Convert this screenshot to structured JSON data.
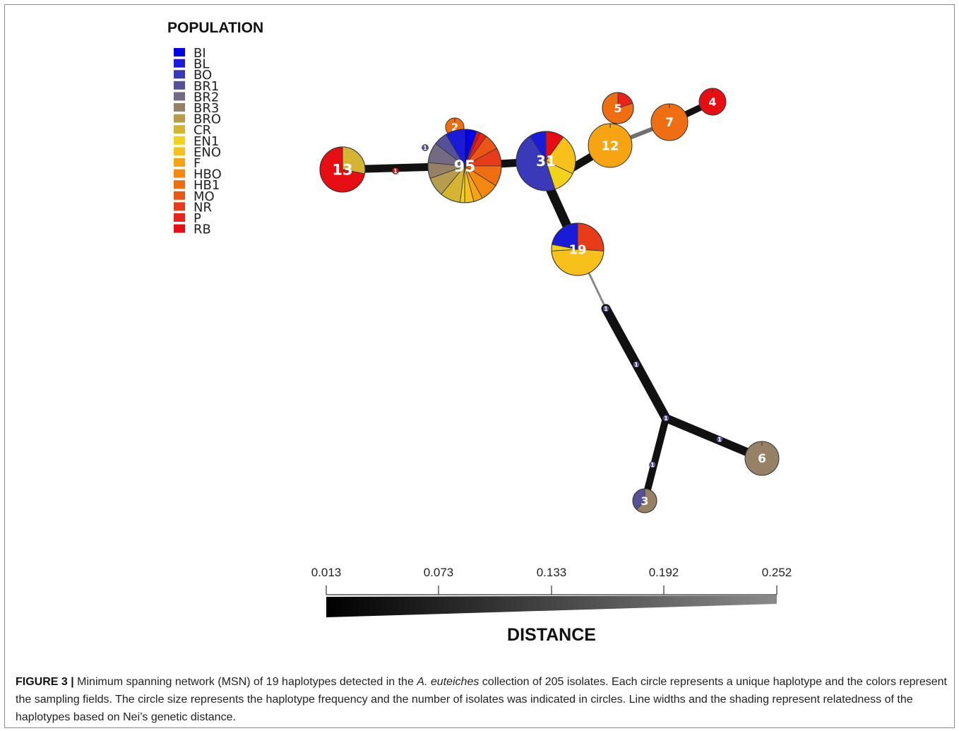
{
  "legend": {
    "title": "POPULATION",
    "items": [
      {
        "label": "BI",
        "color": "#0000e6"
      },
      {
        "label": "BL",
        "color": "#1a1ad9"
      },
      {
        "label": "BO",
        "color": "#3a3ab8"
      },
      {
        "label": "BR1",
        "color": "#55509a"
      },
      {
        "label": "BR2",
        "color": "#746a84"
      },
      {
        "label": "BR3",
        "color": "#968167"
      },
      {
        "label": "BRO",
        "color": "#b69c4e"
      },
      {
        "label": "CR",
        "color": "#d4b432"
      },
      {
        "label": "EN1",
        "color": "#f2d21a"
      },
      {
        "label": "ENO",
        "color": "#f7c01a"
      },
      {
        "label": "F",
        "color": "#f7a412"
      },
      {
        "label": "HBO",
        "color": "#f5880e"
      },
      {
        "label": "HB1",
        "color": "#f06e12"
      },
      {
        "label": "MO",
        "color": "#eb5516"
      },
      {
        "label": "NR",
        "color": "#e83b1a"
      },
      {
        "label": "P",
        "color": "#e8241a"
      },
      {
        "label": "RB",
        "color": "#e60e12"
      }
    ]
  },
  "network": {
    "nodes": [
      {
        "id": "n13",
        "label": "13",
        "count": 13,
        "slices": [
          [
            "CR",
            0.28
          ],
          [
            "RB",
            0.72
          ]
        ]
      },
      {
        "id": "n2",
        "label": "2",
        "count": 2,
        "slices": [
          [
            "HB1",
            1.0
          ]
        ]
      },
      {
        "id": "n95",
        "label": "95",
        "count": 95,
        "slices": [
          [
            "BI",
            0.055
          ],
          [
            "RB",
            0.015
          ],
          [
            "P",
            0.03
          ],
          [
            "MO",
            0.07
          ],
          [
            "NR",
            0.08
          ],
          [
            "HB1",
            0.09
          ],
          [
            "HBO",
            0.08
          ],
          [
            "F",
            0.04
          ],
          [
            "ENO",
            0.04
          ],
          [
            "EN1",
            0.02
          ],
          [
            "CR",
            0.09
          ],
          [
            "BRO",
            0.085
          ],
          [
            "BR3",
            0.07
          ],
          [
            "BR2",
            0.09
          ],
          [
            "BR1",
            0.06
          ],
          [
            "BL",
            0.085
          ]
        ]
      },
      {
        "id": "n31",
        "label": "31",
        "count": 31,
        "slices": [
          [
            "RB",
            0.1
          ],
          [
            "ENO",
            0.22
          ],
          [
            "EN1",
            0.13
          ],
          [
            "BO",
            0.46
          ],
          [
            "BL",
            0.09
          ]
        ]
      },
      {
        "id": "n5",
        "label": "5",
        "count": 5,
        "slices": [
          [
            "P",
            0.2
          ],
          [
            "HB1",
            0.8
          ]
        ]
      },
      {
        "id": "n12",
        "label": "12",
        "count": 12,
        "slices": [
          [
            "F",
            1.0
          ]
        ]
      },
      {
        "id": "n7",
        "label": "7",
        "count": 7,
        "slices": [
          [
            "HB1",
            1.0
          ]
        ]
      },
      {
        "id": "n4",
        "label": "4",
        "count": 4,
        "slices": [
          [
            "RB",
            1.0
          ]
        ]
      },
      {
        "id": "n19",
        "label": "19",
        "count": 19,
        "slices": [
          [
            "NR",
            0.26
          ],
          [
            "ENO",
            0.48
          ],
          [
            "EN1",
            0.04
          ],
          [
            "BL",
            0.22
          ]
        ]
      },
      {
        "id": "n6",
        "label": "6",
        "count": 6,
        "slices": [
          [
            "BR3",
            1.0
          ]
        ]
      },
      {
        "id": "n3",
        "label": "3",
        "count": 3,
        "slices": [
          [
            "BR3",
            0.62
          ],
          [
            "BR1",
            0.38
          ]
        ]
      }
    ],
    "edges": [
      {
        "from": "n13",
        "to": "n95",
        "distance": 0.013
      },
      {
        "from": "n95",
        "to": "n31",
        "distance": 0.013
      },
      {
        "from": "n31",
        "to": "n12",
        "distance": 0.013
      },
      {
        "from": "n12",
        "to": "n5",
        "distance": 0.013
      },
      {
        "from": "n12",
        "to": "n7",
        "distance": 0.2
      },
      {
        "from": "n7",
        "to": "n4",
        "distance": 0.013
      },
      {
        "from": "n31",
        "to": "n19",
        "distance": 0.013
      },
      {
        "from": "n19",
        "to": "b1",
        "distance": 0.252
      },
      {
        "from": "b1",
        "to": "b2",
        "distance": 0.013
      },
      {
        "from": "b2",
        "to": "b3",
        "distance": 0.013
      },
      {
        "from": "b3",
        "to": "n6",
        "distance": 0.013
      },
      {
        "from": "b3",
        "to": "n3",
        "distance": 0.013
      }
    ],
    "step_labels": [
      "1",
      "1",
      "1",
      "1",
      "1",
      "1",
      "1",
      "1",
      "1"
    ]
  },
  "scale": {
    "title": "DISTANCE",
    "ticks": [
      "0.013",
      "0.073",
      "0.133",
      "0.192",
      "0.252"
    ],
    "min": 0.013,
    "max": 0.252
  },
  "caption": {
    "lead": "FIGURE 3 |",
    "text1": " Minimum spanning network (MSN) of 19 haplotypes detected in the ",
    "italic": "A. euteiches",
    "text2": " collection of 205 isolates. Each circle represents a unique haplotype and the colors represent the sampling fields. The circle size represents the haplotype frequency and the number of isolates was indicated in circles. Line widths and the shading represent relatedness of the haplotypes based on Nei’s genetic distance."
  }
}
